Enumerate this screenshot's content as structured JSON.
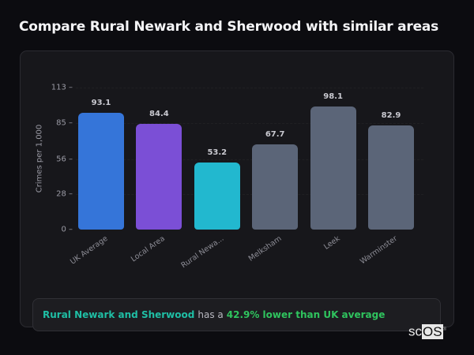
{
  "header": {
    "title": "Compare Rural Newark and Sherwood with similar areas"
  },
  "chart_data": {
    "type": "bar",
    "title": "Compare Rural Newark and Sherwood with similar areas",
    "xlabel": "",
    "ylabel": "Crimes per 1,000",
    "ylim": [
      0,
      113
    ],
    "yticks": [
      0,
      28,
      56,
      85,
      113
    ],
    "grid": true,
    "legend": null,
    "categories": [
      "UK Average",
      "Local Area",
      "Rural Newa...",
      "Melksham",
      "Leek",
      "Warminster"
    ],
    "values": [
      93.1,
      84.4,
      53.2,
      67.7,
      98.1,
      82.9
    ],
    "value_labels": [
      "93.1",
      "84.4",
      "53.2",
      "67.7",
      "98.1",
      "82.9"
    ],
    "colors": [
      "#3575d9",
      "#7b4fd6",
      "#22b8cf",
      "#5b6578",
      "#5b6578",
      "#5b6578"
    ]
  },
  "summary": {
    "location": "Rural Newark and Sherwood",
    "connector": "has a",
    "comparison": "42.9% lower than UK average"
  },
  "branding": {
    "logo_left": "sc",
    "logo_right": "OS",
    "mark": "®"
  }
}
